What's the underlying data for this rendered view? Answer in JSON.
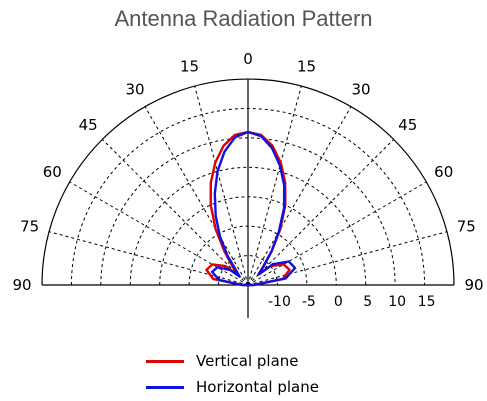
{
  "chart_data": {
    "type": "polar",
    "title": "Antenna Radiation Pattern",
    "angle_unit": "degrees",
    "angle_range": [
      -90,
      90
    ],
    "angle_ticks": [
      90,
      75,
      60,
      45,
      30,
      15,
      0,
      15,
      30,
      45,
      60,
      75,
      90
    ],
    "radial_ticks": [
      "-10",
      "-5",
      "0",
      "5",
      "10",
      "15"
    ],
    "radial_range": [
      -15,
      20
    ],
    "grid": true,
    "legend_position": "bottom",
    "series": [
      {
        "name": "Vertical plane",
        "color": "#e00000",
        "angles": [
          -90,
          -80,
          -70,
          -60,
          -50,
          -45,
          -40,
          -35,
          -30,
          -25,
          -20,
          -15,
          -10,
          -5,
          0,
          5,
          10,
          15,
          20,
          25,
          30,
          35,
          40,
          45,
          50,
          60,
          70,
          80,
          90
        ],
        "values": [
          -14,
          -9,
          -7.5,
          -8,
          -10,
          -12.5,
          -11,
          -8,
          -4,
          0,
          3.5,
          6.5,
          9,
          10.6,
          11,
          10.6,
          9,
          6.5,
          3.5,
          0,
          -4,
          -8,
          -11,
          -12.5,
          -10,
          -8,
          -7.5,
          -9,
          -14
        ]
      },
      {
        "name": "Horizontal plane",
        "color": "#1010e0",
        "angles": [
          -90,
          -80,
          -70,
          -60,
          -50,
          -45,
          -40,
          -35,
          -30,
          -25,
          -20,
          -15,
          -10,
          -5,
          0,
          5,
          10,
          15,
          20,
          25,
          30,
          35,
          40,
          45,
          50,
          60,
          70,
          80,
          90
        ],
        "values": [
          -14,
          -10,
          -8.5,
          -9,
          -11,
          -13,
          -12,
          -9,
          -5.5,
          -2,
          1.5,
          5,
          8,
          10.2,
          11,
          10.4,
          8.6,
          6,
          3,
          -0.5,
          -4.5,
          -8,
          -11,
          -12.5,
          -9.5,
          -7,
          -6.5,
          -8.5,
          -14
        ]
      }
    ]
  }
}
